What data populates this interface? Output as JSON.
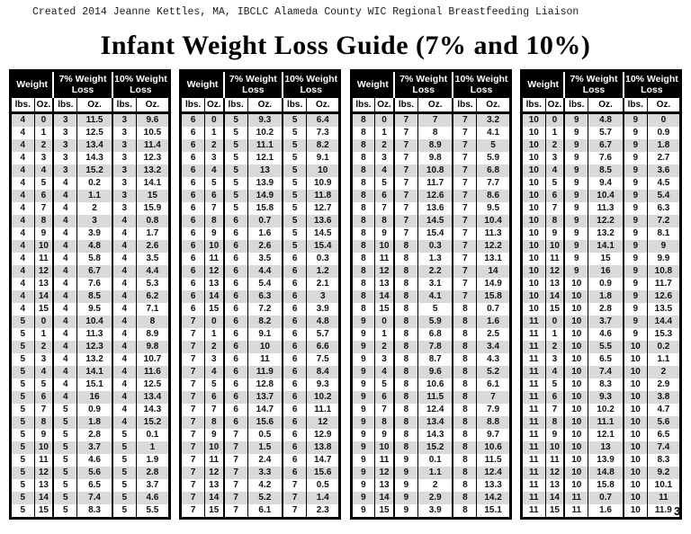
{
  "credit": "Created 2014 Jeanne Kettles, MA, IBCLC Alameda County WIC Regional Breastfeeding Liaison",
  "title": "Infant Weight Loss Guide (7% and 10%)",
  "page_number": "3",
  "columns": {
    "weight": "Weight",
    "loss7": "7% Weight Loss",
    "loss10": "10% Weight Loss",
    "lbs": "lbs.",
    "oz": "Oz."
  },
  "colors": {
    "header_bg": "#000000",
    "row_alt": "#d9d9d9",
    "row": "#ffffff"
  },
  "tables": [
    {
      "range": "4-0 to 5-15",
      "rows": [
        [
          4,
          0,
          3,
          11.5,
          3,
          9.6
        ],
        [
          4,
          1,
          3,
          12.5,
          3,
          10.5
        ],
        [
          4,
          2,
          3,
          13.4,
          3,
          11.4
        ],
        [
          4,
          3,
          3,
          14.3,
          3,
          12.3
        ],
        [
          4,
          4,
          3,
          15.2,
          3,
          13.2
        ],
        [
          4,
          5,
          4,
          0.2,
          3,
          14.1
        ],
        [
          4,
          6,
          4,
          1.1,
          3,
          15
        ],
        [
          4,
          7,
          4,
          2,
          3,
          15.9
        ],
        [
          4,
          8,
          4,
          3,
          4,
          0.8
        ],
        [
          4,
          9,
          4,
          3.9,
          4,
          1.7
        ],
        [
          4,
          10,
          4,
          4.8,
          4,
          2.6
        ],
        [
          4,
          11,
          4,
          5.8,
          4,
          3.5
        ],
        [
          4,
          12,
          4,
          6.7,
          4,
          4.4
        ],
        [
          4,
          13,
          4,
          7.6,
          4,
          5.3
        ],
        [
          4,
          14,
          4,
          8.5,
          4,
          6.2
        ],
        [
          4,
          15,
          4,
          9.5,
          4,
          7.1
        ],
        [
          5,
          0,
          4,
          10.4,
          4,
          8
        ],
        [
          5,
          1,
          4,
          11.3,
          4,
          8.9
        ],
        [
          5,
          2,
          4,
          12.3,
          4,
          9.8
        ],
        [
          5,
          3,
          4,
          13.2,
          4,
          10.7
        ],
        [
          5,
          4,
          4,
          14.1,
          4,
          11.6
        ],
        [
          5,
          5,
          4,
          15.1,
          4,
          12.5
        ],
        [
          5,
          6,
          4,
          16,
          4,
          13.4
        ],
        [
          5,
          7,
          5,
          0.9,
          4,
          14.3
        ],
        [
          5,
          8,
          5,
          1.8,
          4,
          15.2
        ],
        [
          5,
          9,
          5,
          2.8,
          5,
          0.1
        ],
        [
          5,
          10,
          5,
          3.7,
          5,
          1
        ],
        [
          5,
          11,
          5,
          4.6,
          5,
          1.9
        ],
        [
          5,
          12,
          5,
          5.6,
          5,
          2.8
        ],
        [
          5,
          13,
          5,
          6.5,
          5,
          3.7
        ],
        [
          5,
          14,
          5,
          7.4,
          5,
          4.6
        ],
        [
          5,
          15,
          5,
          8.3,
          5,
          5.5
        ]
      ]
    },
    {
      "range": "6-0 to 7-15",
      "rows": [
        [
          6,
          0,
          5,
          9.3,
          5,
          6.4
        ],
        [
          6,
          1,
          5,
          10.2,
          5,
          7.3
        ],
        [
          6,
          2,
          5,
          11.1,
          5,
          8.2
        ],
        [
          6,
          3,
          5,
          12.1,
          5,
          9.1
        ],
        [
          6,
          4,
          5,
          13,
          5,
          10
        ],
        [
          6,
          5,
          5,
          13.9,
          5,
          10.9
        ],
        [
          6,
          6,
          5,
          14.9,
          5,
          11.8
        ],
        [
          6,
          7,
          5,
          15.8,
          5,
          12.7
        ],
        [
          6,
          8,
          6,
          0.7,
          5,
          13.6
        ],
        [
          6,
          9,
          6,
          1.6,
          5,
          14.5
        ],
        [
          6,
          10,
          6,
          2.6,
          5,
          15.4
        ],
        [
          6,
          11,
          6,
          3.5,
          6,
          0.3
        ],
        [
          6,
          12,
          6,
          4.4,
          6,
          1.2
        ],
        [
          6,
          13,
          6,
          5.4,
          6,
          2.1
        ],
        [
          6,
          14,
          6,
          6.3,
          6,
          3
        ],
        [
          6,
          15,
          6,
          7.2,
          6,
          3.9
        ],
        [
          7,
          0,
          6,
          8.2,
          6,
          4.8
        ],
        [
          7,
          1,
          6,
          9.1,
          6,
          5.7
        ],
        [
          7,
          2,
          6,
          10,
          6,
          6.6
        ],
        [
          7,
          3,
          6,
          11,
          6,
          7.5
        ],
        [
          7,
          4,
          6,
          11.9,
          6,
          8.4
        ],
        [
          7,
          5,
          6,
          12.8,
          6,
          9.3
        ],
        [
          7,
          6,
          6,
          13.7,
          6,
          10.2
        ],
        [
          7,
          7,
          6,
          14.7,
          6,
          11.1
        ],
        [
          7,
          8,
          6,
          15.6,
          6,
          12
        ],
        [
          7,
          9,
          7,
          0.5,
          6,
          12.9
        ],
        [
          7,
          10,
          7,
          1.5,
          6,
          13.8
        ],
        [
          7,
          11,
          7,
          2.4,
          6,
          14.7
        ],
        [
          7,
          12,
          7,
          3.3,
          6,
          15.6
        ],
        [
          7,
          13,
          7,
          4.2,
          7,
          0.5
        ],
        [
          7,
          14,
          7,
          5.2,
          7,
          1.4
        ],
        [
          7,
          15,
          7,
          6.1,
          7,
          2.3
        ]
      ]
    },
    {
      "range": "8-0 to 9-15",
      "rows": [
        [
          8,
          0,
          7,
          7,
          7,
          3.2
        ],
        [
          8,
          1,
          7,
          8,
          7,
          4.1
        ],
        [
          8,
          2,
          7,
          8.9,
          7,
          5
        ],
        [
          8,
          3,
          7,
          9.8,
          7,
          5.9
        ],
        [
          8,
          4,
          7,
          10.8,
          7,
          6.8
        ],
        [
          8,
          5,
          7,
          11.7,
          7,
          7.7
        ],
        [
          8,
          6,
          7,
          12.6,
          7,
          8.6
        ],
        [
          8,
          7,
          7,
          13.6,
          7,
          9.5
        ],
        [
          8,
          8,
          7,
          14.5,
          7,
          10.4
        ],
        [
          8,
          9,
          7,
          15.4,
          7,
          11.3
        ],
        [
          8,
          10,
          8,
          0.3,
          7,
          12.2
        ],
        [
          8,
          11,
          8,
          1.3,
          7,
          13.1
        ],
        [
          8,
          12,
          8,
          2.2,
          7,
          14
        ],
        [
          8,
          13,
          8,
          3.1,
          7,
          14.9
        ],
        [
          8,
          14,
          8,
          4.1,
          7,
          15.8
        ],
        [
          8,
          15,
          8,
          5,
          8,
          0.7
        ],
        [
          9,
          0,
          8,
          5.9,
          8,
          1.6
        ],
        [
          9,
          1,
          8,
          6.8,
          8,
          2.5
        ],
        [
          9,
          2,
          8,
          7.8,
          8,
          3.4
        ],
        [
          9,
          3,
          8,
          8.7,
          8,
          4.3
        ],
        [
          9,
          4,
          8,
          9.6,
          8,
          5.2
        ],
        [
          9,
          5,
          8,
          10.6,
          8,
          6.1
        ],
        [
          9,
          6,
          8,
          11.5,
          8,
          7
        ],
        [
          9,
          7,
          8,
          12.4,
          8,
          7.9
        ],
        [
          9,
          8,
          8,
          13.4,
          8,
          8.8
        ],
        [
          9,
          9,
          8,
          14.3,
          8,
          9.7
        ],
        [
          9,
          10,
          8,
          15.2,
          8,
          10.6
        ],
        [
          9,
          11,
          9,
          0.1,
          8,
          11.5
        ],
        [
          9,
          12,
          9,
          1.1,
          8,
          12.4
        ],
        [
          9,
          13,
          9,
          2,
          8,
          13.3
        ],
        [
          9,
          14,
          9,
          2.9,
          8,
          14.2
        ],
        [
          9,
          15,
          9,
          3.9,
          8,
          15.1
        ]
      ]
    },
    {
      "range": "10-0 to 11-15",
      "rows": [
        [
          10,
          0,
          9,
          4.8,
          9,
          0
        ],
        [
          10,
          1,
          9,
          5.7,
          9,
          0.9
        ],
        [
          10,
          2,
          9,
          6.7,
          9,
          1.8
        ],
        [
          10,
          3,
          9,
          7.6,
          9,
          2.7
        ],
        [
          10,
          4,
          9,
          8.5,
          9,
          3.6
        ],
        [
          10,
          5,
          9,
          9.4,
          9,
          4.5
        ],
        [
          10,
          6,
          9,
          10.4,
          9,
          5.4
        ],
        [
          10,
          7,
          9,
          11.3,
          9,
          6.3
        ],
        [
          10,
          8,
          9,
          12.2,
          9,
          7.2
        ],
        [
          10,
          9,
          9,
          13.2,
          9,
          8.1
        ],
        [
          10,
          10,
          9,
          14.1,
          9,
          9
        ],
        [
          10,
          11,
          9,
          15,
          9,
          9.9
        ],
        [
          10,
          12,
          9,
          16,
          9,
          10.8
        ],
        [
          10,
          13,
          10,
          0.9,
          9,
          11.7
        ],
        [
          10,
          14,
          10,
          1.8,
          9,
          12.6
        ],
        [
          10,
          15,
          10,
          2.8,
          9,
          13.5
        ],
        [
          11,
          0,
          10,
          3.7,
          9,
          14.4
        ],
        [
          11,
          1,
          10,
          4.6,
          9,
          15.3
        ],
        [
          11,
          2,
          10,
          5.5,
          10,
          0.2
        ],
        [
          11,
          3,
          10,
          6.5,
          10,
          1.1
        ],
        [
          11,
          4,
          10,
          7.4,
          10,
          2
        ],
        [
          11,
          5,
          10,
          8.3,
          10,
          2.9
        ],
        [
          11,
          6,
          10,
          9.3,
          10,
          3.8
        ],
        [
          11,
          7,
          10,
          10.2,
          10,
          4.7
        ],
        [
          11,
          8,
          10,
          11.1,
          10,
          5.6
        ],
        [
          11,
          9,
          10,
          12.1,
          10,
          6.5
        ],
        [
          11,
          10,
          10,
          13,
          10,
          7.4
        ],
        [
          11,
          11,
          10,
          13.9,
          10,
          8.3
        ],
        [
          11,
          12,
          10,
          14.8,
          10,
          9.2
        ],
        [
          11,
          13,
          10,
          15.8,
          10,
          10.1
        ],
        [
          11,
          14,
          11,
          0.7,
          10,
          11
        ],
        [
          11,
          15,
          11,
          1.6,
          10,
          11.9
        ]
      ]
    }
  ]
}
